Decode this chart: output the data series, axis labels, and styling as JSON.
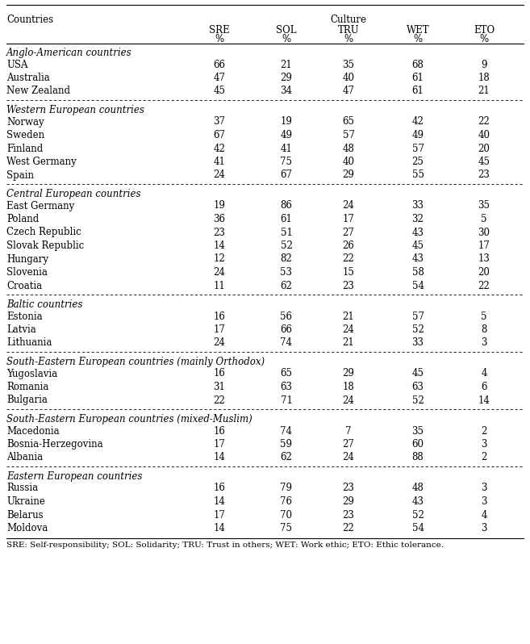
{
  "header_main": "Countries",
  "header_group": "Culture",
  "col_labels": [
    "SRE",
    "SOL",
    "TRU",
    "WET",
    "ETO"
  ],
  "footnote": "SRE: Self-responsibility; SOL: Solidarity; TRU: Trust in others; WET: Work ethic; ETO: Ethic tolerance.",
  "groups": [
    {
      "group_label": "Anglo-American countries",
      "rows": [
        [
          "USA",
          66,
          21,
          35,
          68,
          9
        ],
        [
          "Australia",
          47,
          29,
          40,
          61,
          18
        ],
        [
          "New Zealand",
          45,
          34,
          47,
          61,
          21
        ]
      ]
    },
    {
      "group_label": "Western European countries",
      "rows": [
        [
          "Norway",
          37,
          19,
          65,
          42,
          22
        ],
        [
          "Sweden",
          67,
          49,
          57,
          49,
          40
        ],
        [
          "Finland",
          42,
          41,
          48,
          57,
          20
        ],
        [
          "West Germany",
          41,
          75,
          40,
          25,
          45
        ],
        [
          "Spain",
          24,
          67,
          29,
          55,
          23
        ]
      ]
    },
    {
      "group_label": "Central European countries",
      "rows": [
        [
          "East Germany",
          19,
          86,
          24,
          33,
          35
        ],
        [
          "Poland",
          36,
          61,
          17,
          32,
          5
        ],
        [
          "Czech Republic",
          23,
          51,
          27,
          43,
          30
        ],
        [
          "Slovak Republic",
          14,
          52,
          26,
          45,
          17
        ],
        [
          "Hungary",
          12,
          82,
          22,
          43,
          13
        ],
        [
          "Slovenia",
          24,
          53,
          15,
          58,
          20
        ],
        [
          "Croatia",
          11,
          62,
          23,
          54,
          22
        ]
      ]
    },
    {
      "group_label": "Baltic countries",
      "rows": [
        [
          "Estonia",
          16,
          56,
          21,
          57,
          5
        ],
        [
          "Latvia",
          17,
          66,
          24,
          52,
          8
        ],
        [
          "Lithuania",
          24,
          74,
          21,
          33,
          3
        ]
      ]
    },
    {
      "group_label": "South-Eastern European countries (mainly Orthodox)",
      "rows": [
        [
          "Yugoslavia",
          16,
          65,
          29,
          45,
          4
        ],
        [
          "Romania",
          31,
          63,
          18,
          63,
          6
        ],
        [
          "Bulgaria",
          22,
          71,
          24,
          52,
          14
        ]
      ]
    },
    {
      "group_label": "South-Eastern European countries (mixed-Muslim)",
      "rows": [
        [
          "Macedonia",
          16,
          74,
          7,
          35,
          2
        ],
        [
          "Bosnia-Herzegovina",
          17,
          59,
          27,
          60,
          3
        ],
        [
          "Albania",
          14,
          62,
          24,
          88,
          2
        ]
      ]
    },
    {
      "group_label": "Eastern European countries",
      "rows": [
        [
          "Russia",
          16,
          79,
          23,
          48,
          3
        ],
        [
          "Ukraine",
          14,
          76,
          29,
          43,
          3
        ],
        [
          "Belarus",
          17,
          70,
          23,
          52,
          4
        ],
        [
          "Moldova",
          14,
          75,
          22,
          54,
          3
        ]
      ]
    }
  ]
}
